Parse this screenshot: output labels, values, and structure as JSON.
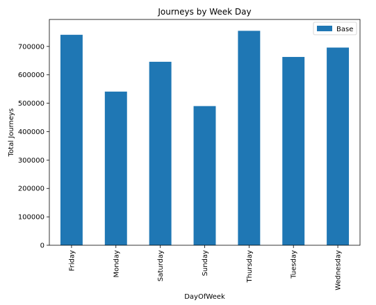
{
  "colors": {
    "bar": "#1f77b4",
    "axis": "#000000",
    "legend_border": "#cccccc"
  },
  "chart_data": {
    "type": "bar",
    "title": "Journeys by Week Day",
    "xlabel": "DayOfWeek",
    "ylabel": "Total Journeys",
    "categories": [
      "Friday",
      "Monday",
      "Saturday",
      "Sunday",
      "Thursday",
      "Tuesday",
      "Wednesday"
    ],
    "series": [
      {
        "name": "Base",
        "values": [
          741000,
          541000,
          646000,
          490000,
          755000,
          663000,
          696000
        ]
      }
    ],
    "ylim": [
      0,
      795000
    ],
    "yticks": [
      0,
      100000,
      200000,
      300000,
      400000,
      500000,
      600000,
      700000
    ],
    "ytick_labels": [
      "0",
      "100000",
      "200000",
      "300000",
      "400000",
      "500000",
      "600000",
      "700000"
    ],
    "grid": false,
    "legend_position": "top-right"
  }
}
